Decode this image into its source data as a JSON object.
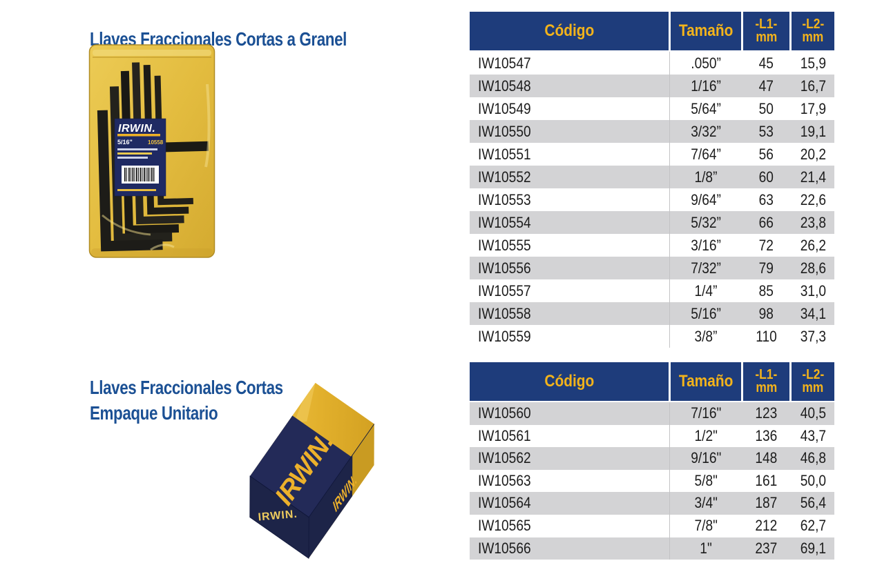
{
  "page_titles": {
    "section1": "Llaves Fraccionales Cortas a Granel",
    "section2_line1": "Llaves Fraccionales Cortas",
    "section2_line2": "Empaque Unitario"
  },
  "bag_image": {
    "brand": "IRWIN.",
    "label_size": "5/16\"",
    "label_sku": "10558"
  },
  "box_image": {
    "brand_front": "IRWIN.",
    "brand_side": "IRWIN.",
    "brand_end": "IRWIN."
  },
  "tables": [
    {
      "name": "llaves-fraccionales-cortas-a-granel",
      "headers": {
        "codigo": "Código",
        "tamano": "Tamaño",
        "l1_line1": "-L1-",
        "l1_line2": "mm",
        "l2_line1": "-L2-",
        "l2_line2": "mm"
      },
      "first_row_shade": "white",
      "rows": [
        [
          "IW10547",
          ".050”",
          "45",
          "15,9"
        ],
        [
          "IW10548",
          "1/16”",
          "47",
          "16,7"
        ],
        [
          "IW10549",
          "5/64”",
          "50",
          "17,9"
        ],
        [
          "IW10550",
          "3/32”",
          "53",
          "19,1"
        ],
        [
          "IW10551",
          "7/64”",
          "56",
          "20,2"
        ],
        [
          "IW10552",
          "1/8”",
          "60",
          "21,4"
        ],
        [
          "IW10553",
          "9/64”",
          "63",
          "22,6"
        ],
        [
          "IW10554",
          "5/32”",
          "66",
          "23,8"
        ],
        [
          "IW10555",
          "3/16”",
          "72",
          "26,2"
        ],
        [
          "IW10556",
          "7/32”",
          "79",
          "28,6"
        ],
        [
          "IW10557",
          "1/4”",
          "85",
          "31,0"
        ],
        [
          "IW10558",
          "5/16”",
          "98",
          "34,1"
        ],
        [
          "IW10559",
          "3/8”",
          "110",
          "37,3"
        ]
      ]
    },
    {
      "name": "llaves-fraccionales-cortas-empaque-unitario",
      "headers": {
        "codigo": "Código",
        "tamano": "Tamaño",
        "l1_line1": "-L1-",
        "l1_line2": "mm",
        "l2_line1": "-L2-",
        "l2_line2": "mm"
      },
      "first_row_shade": "gray",
      "rows": [
        [
          "IW10560",
          "7/16\"",
          "123",
          "40,5"
        ],
        [
          "IW10561",
          "1/2\"",
          "136",
          "43,7"
        ],
        [
          "IW10562",
          "9/16\"",
          "148",
          "46,8"
        ],
        [
          "IW10563",
          "5/8\"",
          "161",
          "50,0"
        ],
        [
          "IW10564",
          "3/4\"",
          "187",
          "56,4"
        ],
        [
          "IW10565",
          "7/8\"",
          "212",
          "62,7"
        ],
        [
          "IW10566",
          "1\"",
          "237",
          "69,1"
        ]
      ]
    }
  ],
  "colors": {
    "header_bg": "#1e3c7b",
    "header_text": "#f3b31b",
    "row_alt_bg": "#d3d3d5",
    "row_text": "#1c1c1c",
    "title_text": "#1b5094",
    "brand_navy": "#232a58",
    "brand_navy_dark": "#1d2448",
    "brand_gold": "#edb12b",
    "bag_yellow": "#e3bc3f"
  }
}
